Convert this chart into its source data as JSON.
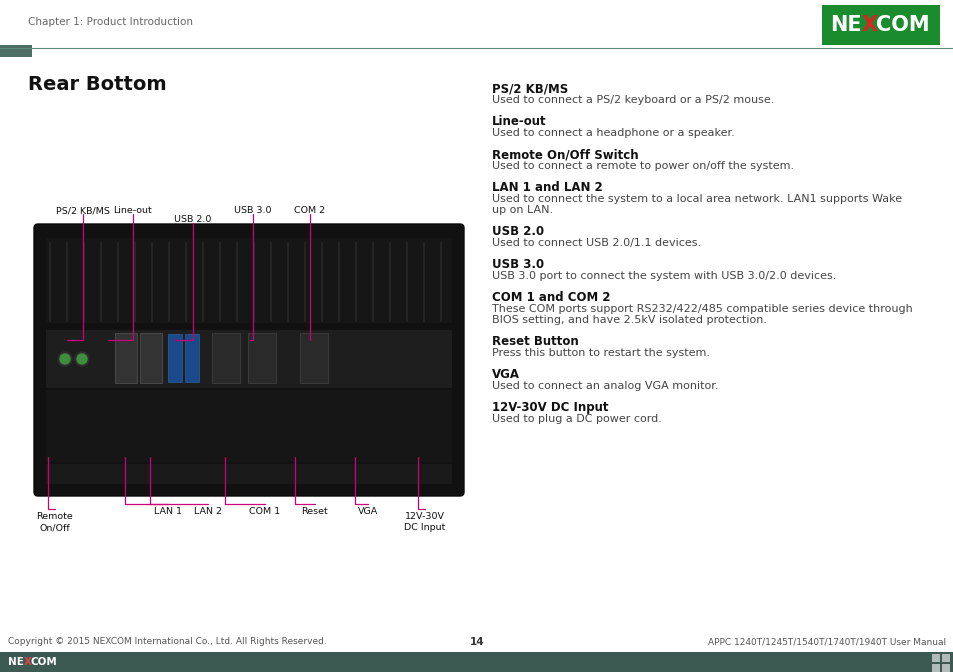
{
  "page_title": "Chapter 1: Product Introduction",
  "section_title": "Rear Bottom",
  "header_line_color": "#5a8a7a",
  "header_square_color": "#4d6e65",
  "nexcom_bg_color": "#1a8c2e",
  "footer_bg_color": "#3d5a52",
  "footer_text_left": "Copyright © 2015 NEXCOM International Co., Ltd. All Rights Reserved.",
  "footer_page_num": "14",
  "footer_text_right": "APPC 1240T/1245T/1540T/1740T/1940T User Manual",
  "right_sections": [
    {
      "title": "PS/2 KB/MS",
      "body": [
        "Used to connect a PS/2 keyboard or a PS/2 mouse."
      ]
    },
    {
      "title": "Line-out",
      "body": [
        "Used to connect a headphone or a speaker."
      ]
    },
    {
      "title": "Remote On/Off Switch",
      "body": [
        "Used to connect a remote to power on/off the system."
      ]
    },
    {
      "title": "LAN 1 and LAN 2",
      "body": [
        "Used to connect the system to a local area network. LAN1 supports Wake",
        "up on LAN."
      ]
    },
    {
      "title": "USB 2.0",
      "body": [
        "Used to connect USB 2.0/1.1 devices."
      ]
    },
    {
      "title": "USB 3.0",
      "body": [
        "USB 3.0 port to connect the system with USB 3.0/2.0 devices."
      ]
    },
    {
      "title": "COM 1 and COM 2",
      "body": [
        "These COM ports support RS232/422/485 compatible series device through",
        "BIOS setting, and have 2.5kV isolated protection."
      ]
    },
    {
      "title": "Reset Button",
      "body": [
        "Press this button to restart the system."
      ]
    },
    {
      "title": "VGA",
      "body": [
        "Used to connect an analog VGA monitor."
      ]
    },
    {
      "title": "12V-30V DC Input",
      "body": [
        "Used to plug a DC power cord."
      ]
    }
  ],
  "label_color": "#cc007a",
  "bg_color": "#ffffff",
  "text_color": "#111111",
  "body_text_color": "#444444",
  "title_fs": 8.5,
  "body_fs": 8.0,
  "label_fs": 6.8
}
